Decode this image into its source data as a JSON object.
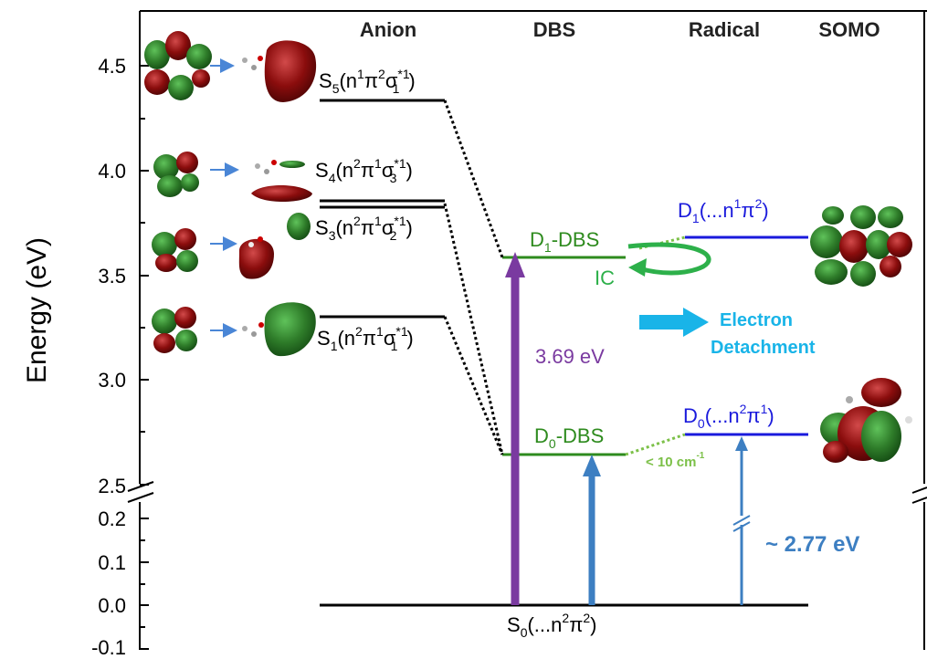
{
  "headers": {
    "anion": "Anion",
    "dbs": "DBS",
    "radical": "Radical",
    "somo": "SOMO"
  },
  "axis": {
    "ylabel": "Energy (eV)",
    "upper_ticks": [
      "4.5",
      "4.0",
      "3.5",
      "3.0",
      "2.5"
    ],
    "lower_ticks": [
      "0.2",
      "0.1",
      "0.0",
      "-0.1"
    ]
  },
  "levels": {
    "s5": {
      "main": "S",
      "sub": "5",
      "paren": "(n",
      "sup1": "1",
      "mid1": "π",
      "sup2": "2",
      "mid2": "σ",
      "sup3": "*1",
      "sub3": "1",
      "end": ")"
    },
    "s4": {
      "main": "S",
      "sub": "4",
      "paren": "(n",
      "sup1": "2",
      "mid1": "π",
      "sup2": "1",
      "mid2": "σ",
      "sup3": "*1",
      "sub3": "3",
      "end": ")"
    },
    "s3": {
      "main": "S",
      "sub": "3",
      "paren": "(n",
      "sup1": "2",
      "mid1": "π",
      "sup2": "1",
      "mid2": "σ",
      "sup3": "*1",
      "sub3": "2",
      "end": ")"
    },
    "s1": {
      "main": "S",
      "sub": "1",
      "paren": "(n",
      "sup1": "2",
      "mid1": "π",
      "sup2": "1",
      "mid2": "σ",
      "sup3": "*1",
      "sub3": "1",
      "end": ")"
    },
    "s0": {
      "main": "S",
      "sub": "0",
      "paren": "(...n",
      "sup1": "2",
      "mid1": "π",
      "sup2": "2",
      "end": ")"
    },
    "d1_dbs": {
      "main": "D",
      "sub": "1",
      "rest": "-DBS"
    },
    "d0_dbs": {
      "main": "D",
      "sub": "0",
      "rest": "-DBS"
    },
    "d1_rad": {
      "main": "D",
      "sub": "1",
      "paren": "(...n",
      "sup1": "1",
      "mid1": "π",
      "sup2": "2",
      "end": ")"
    },
    "d0_rad": {
      "main": "D",
      "sub": "0",
      "paren": "(...n",
      "sup1": "2",
      "mid1": "π",
      "sup2": "1",
      "end": ")"
    }
  },
  "annotations": {
    "ic": "IC",
    "excitation": "3.69 eV",
    "detachment_line1": "Electron",
    "detachment_line2": "Detachment",
    "spacing": "< 10 cm",
    "spacing_sup": "-1",
    "ionization": "~ 2.77 eV"
  },
  "colors": {
    "anion": "#000000",
    "dbs": "#2e8b1e",
    "radical": "#1a1adc",
    "excitation_arrow": "#7a3aa0",
    "detach_arrow": "#3d7fc2",
    "electron_detachment": "#19b4e8",
    "spacing_text": "#7cc048",
    "orbital_red": "#8b0d0d",
    "orbital_green": "#2f7d2a"
  }
}
